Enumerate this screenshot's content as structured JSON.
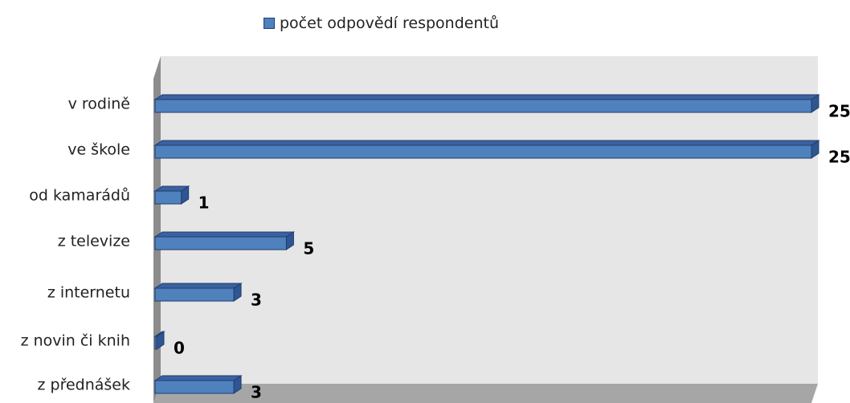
{
  "chart_data": {
    "type": "bar",
    "orientation": "horizontal",
    "categories": [
      "v rodině",
      "ve škole",
      "od kamarádů",
      "z televize",
      "z internetu",
      "z novin či knih",
      "z přednášek"
    ],
    "series": [
      {
        "name": "počet odpovědí respondentů",
        "values": [
          25,
          25,
          1,
          5,
          3,
          0,
          3
        ]
      }
    ],
    "xlim": [
      0,
      25
    ],
    "grid": false,
    "legend_position": "top",
    "colors": {
      "bar": "#4f81bd",
      "bar_top": "#3a62a0",
      "bar_edge": "#1f3d6e",
      "wall": "#e6e6e6",
      "floor": "#a6a6a6"
    }
  }
}
